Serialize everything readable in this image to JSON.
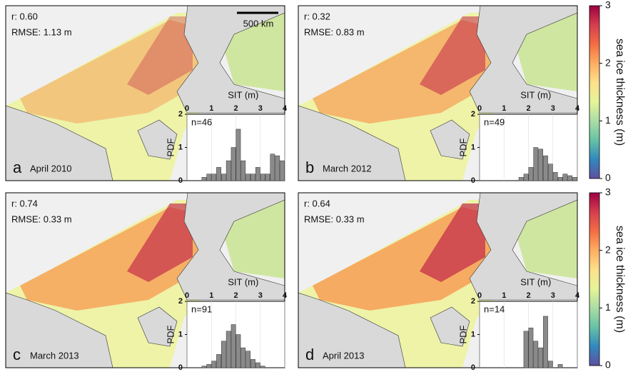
{
  "panels": [
    {
      "letter": "a",
      "date": "April 2010",
      "r": "r: 0.60",
      "rmse": "RMSE: 1.13 m",
      "n": "n=46"
    },
    {
      "letter": "b",
      "date": "March 2012",
      "r": "r: 0.32",
      "rmse": "RMSE: 0.83 m",
      "n": "n=49"
    },
    {
      "letter": "c",
      "date": "March 2013",
      "r": "r: 0.74",
      "rmse": "RMSE: 0.33 m",
      "n": "n=91"
    },
    {
      "letter": "d",
      "date": "April 2013",
      "r": "r: 0.64",
      "rmse": "RMSE: 0.33 m",
      "n": "n=14"
    }
  ],
  "scale_bar": "500 km",
  "colorbars": [
    {
      "label": "sea ice thickness (m)",
      "ylim": [
        0,
        3
      ],
      "yticks": [
        0,
        1,
        2,
        3
      ],
      "colors": [
        "#5e4fa2",
        "#3288bd",
        "#66c2a5",
        "#abdda4",
        "#e6f598",
        "#fee08b",
        "#fdae61",
        "#f46d43",
        "#d53e4f",
        "#9e0142"
      ]
    },
    {
      "label": "sea ice thickness (m)",
      "ylim": [
        0,
        3
      ],
      "yticks": [
        0,
        1,
        2,
        3
      ],
      "colors": [
        "#5e4fa2",
        "#3288bd",
        "#66c2a5",
        "#abdda4",
        "#e6f598",
        "#fee08b",
        "#fdae61",
        "#f46d43",
        "#d53e4f",
        "#9e0142"
      ]
    }
  ],
  "chart_data": [
    {
      "type": "histogram",
      "xlabel": "SIT (m)",
      "ylabel": "PDF",
      "color": "#8a8a8a",
      "bins": [
        0,
        0.2,
        0.4,
        0.6,
        0.8,
        1.0,
        1.2,
        1.4,
        1.6,
        1.8,
        2.0,
        2.2,
        2.4,
        2.6,
        2.8,
        3.0,
        3.2,
        3.4,
        3.6,
        3.8,
        4.0
      ],
      "values": [
        0,
        0,
        0,
        0.1,
        0.2,
        0.2,
        0.4,
        0.2,
        0.6,
        1.0,
        1.55,
        0.6,
        0.2,
        0.2,
        0.4,
        0.2,
        0.2,
        0.8,
        0.75,
        0.6
      ],
      "xlim": [
        0,
        4
      ],
      "xticks": [
        0,
        1,
        2,
        3,
        4
      ],
      "ylim": [
        0,
        2
      ],
      "yticks": [
        0,
        1,
        2
      ]
    },
    {
      "type": "histogram",
      "xlabel": "SIT (m)",
      "ylabel": "PDF",
      "color": "#8a8a8a",
      "bins": [
        0,
        0.2,
        0.4,
        0.6,
        0.8,
        1.0,
        1.2,
        1.4,
        1.6,
        1.8,
        2.0,
        2.2,
        2.4,
        2.6,
        2.8,
        3.0,
        3.2,
        3.4,
        3.6,
        3.8,
        4.0
      ],
      "values": [
        0,
        0,
        0,
        0,
        0,
        0,
        0,
        0,
        0.1,
        0.2,
        0.4,
        1.0,
        0.95,
        0.75,
        0.5,
        0.25,
        0.1,
        0.2,
        0.15,
        0.1
      ],
      "xlim": [
        0,
        4
      ],
      "xticks": [
        0,
        1,
        2,
        3,
        4
      ],
      "ylim": [
        0,
        2
      ],
      "yticks": [
        0,
        1,
        2
      ]
    },
    {
      "type": "histogram",
      "xlabel": "SIT (m)",
      "ylabel": "PDF",
      "color": "#8a8a8a",
      "bins": [
        0,
        0.2,
        0.4,
        0.6,
        0.8,
        1.0,
        1.2,
        1.4,
        1.6,
        1.8,
        2.0,
        2.2,
        2.4,
        2.6,
        2.8,
        3.0,
        3.2,
        3.4,
        3.6,
        3.8,
        4.0
      ],
      "values": [
        0,
        0,
        0,
        0.05,
        0.1,
        0.2,
        0.4,
        0.8,
        1.1,
        1.3,
        1.0,
        0.6,
        0.5,
        0.25,
        0.15,
        0.05,
        0,
        0,
        0,
        0
      ],
      "xlim": [
        0,
        4
      ],
      "xticks": [
        0,
        1,
        2,
        3,
        4
      ],
      "ylim": [
        0,
        2
      ],
      "yticks": [
        0,
        1,
        2
      ]
    },
    {
      "type": "histogram",
      "xlabel": "SIT (m)",
      "ylabel": "PDF",
      "color": "#8a8a8a",
      "bins": [
        0,
        0.2,
        0.4,
        0.6,
        0.8,
        1.0,
        1.2,
        1.4,
        1.6,
        1.8,
        2.0,
        2.2,
        2.4,
        2.6,
        2.8,
        3.0,
        3.2,
        3.4,
        3.6,
        3.8,
        4.0
      ],
      "values": [
        0,
        0,
        0,
        0,
        0,
        0,
        0,
        0,
        0,
        1.1,
        1.2,
        0.8,
        0.6,
        1.55,
        0.2,
        0,
        0.1,
        0,
        0,
        0
      ],
      "xlim": [
        0,
        4
      ],
      "xticks": [
        0,
        1,
        2,
        3,
        4
      ],
      "ylim": [
        0,
        2
      ],
      "yticks": [
        0,
        1,
        2
      ]
    }
  ]
}
